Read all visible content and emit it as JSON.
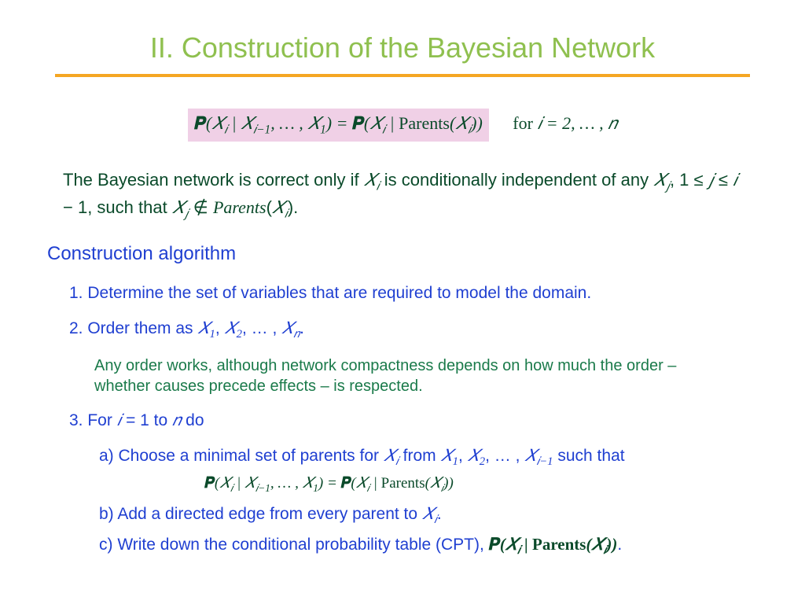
{
  "title": "II. Construction of the Bayesian Network",
  "colors": {
    "title": "#8fc04f",
    "rule": "#f5a623",
    "body": "#0a4a2a",
    "link": "#1f3fd1",
    "note": "#1a7a4a",
    "highlight_bg": "#f0d0e6",
    "background": "#ffffff"
  },
  "fontsize": {
    "title": 36,
    "body": 22,
    "step": 21,
    "note": 20
  },
  "formula": {
    "lhs": "𝑷(𝑋ᵢ | 𝑋ᵢ₋₁, … , 𝑋₁) = 𝑷(𝑋ᵢ | Parents(𝑋ᵢ))",
    "for_text": "for 𝑖 = 2, … , 𝑛"
  },
  "body": "The Bayesian network is correct only if 𝑋ᵢ is conditionally independent of any 𝑋ⱼ, 1 ≤ 𝑗 ≤ 𝑖 − 1, such that 𝑋ⱼ ∉ Parents(𝑋ᵢ).",
  "subheading": "Construction algorithm",
  "steps": {
    "s1": "1. Determine the set of variables that are required to model the domain.",
    "s2": "2. Order them as 𝑋₁, 𝑋₂, … , 𝑋ₙ.",
    "note": "Any order works, although network compactness depends on how much the order – whether causes precede effects – is respected.",
    "s3": "3. For 𝑖 = 1 to 𝑛 do",
    "s3a": "a) Choose a minimal set of parents for 𝑋ᵢ from 𝑋₁, 𝑋₂, … , 𝑋ᵢ₋₁ such that",
    "s3a_formula": "𝑷(𝑋ᵢ | 𝑋ᵢ₋₁, … , 𝑋₁) = 𝑷(𝑋ᵢ | Parents(𝑋ᵢ))",
    "s3b": "b) Add a directed edge from every parent to 𝑋ᵢ.",
    "s3c": "c) Write down the conditional probability table (CPT), 𝑷(𝑋ᵢ | Parents(𝑋ᵢ))."
  }
}
